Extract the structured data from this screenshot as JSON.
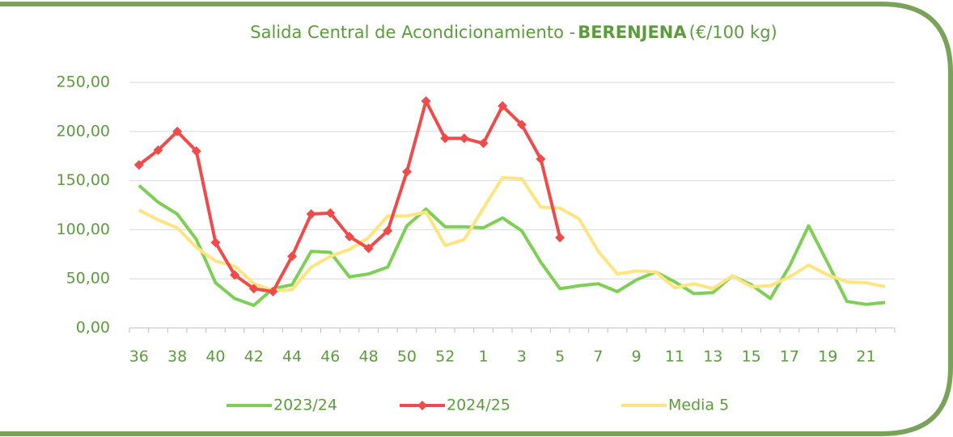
{
  "chart_data": {
    "type": "line",
    "title": [
      "Salida Central de Acondicionamiento -",
      "BERENJENA",
      "(€/100 kg)"
    ],
    "categories": [
      "36",
      null,
      "38",
      null,
      "40",
      null,
      "42",
      null,
      "44",
      null,
      "46",
      null,
      "48",
      null,
      "50",
      null,
      "52",
      null,
      "1",
      null,
      "3",
      null,
      "5",
      null,
      "7",
      null,
      "9",
      null,
      "11",
      null,
      "13",
      null,
      "15",
      null,
      "17",
      null,
      "19",
      null,
      "21",
      null
    ],
    "series": [
      {
        "name": "2023/24",
        "color": "#7dcf55",
        "values": [
          145,
          128,
          116,
          90,
          46,
          30,
          23,
          40,
          44,
          78,
          77,
          52,
          55,
          62,
          104,
          121,
          103,
          103,
          102,
          112,
          99,
          67,
          40,
          43,
          45,
          37,
          49,
          57,
          47,
          35,
          36,
          53,
          44,
          30,
          63,
          104,
          66,
          27,
          24,
          26
        ]
      },
      {
        "name": "2024/25",
        "color": "#f04b4b",
        "marker": "diamond",
        "values": [
          166,
          181,
          200,
          180,
          87,
          54,
          40,
          37,
          73,
          116,
          117,
          93,
          81,
          99,
          159,
          231,
          193,
          193,
          188,
          226,
          207,
          172,
          92,
          null,
          null,
          null,
          null,
          null,
          null,
          null,
          null,
          null,
          null,
          null,
          null,
          null,
          null,
          null,
          null,
          null
        ]
      },
      {
        "name": "Media 5",
        "color": "#ffe57f",
        "values": [
          120,
          110,
          102,
          82,
          68,
          63,
          45,
          38,
          39,
          62,
          73,
          80,
          92,
          114,
          114,
          118,
          84,
          90,
          122,
          153,
          152,
          123,
          122,
          111,
          78,
          55,
          58,
          57,
          41,
          45,
          40,
          53,
          42,
          43,
          52,
          64,
          54,
          47,
          46,
          42
        ]
      }
    ],
    "ylim": [
      0,
      250
    ],
    "yticks": [
      {
        "value": 0,
        "label": "0,00"
      },
      {
        "value": 50,
        "label": "50,00"
      },
      {
        "value": 100,
        "label": "100,00"
      },
      {
        "value": 150,
        "label": "150,00"
      },
      {
        "value": 200,
        "label": "200,00"
      },
      {
        "value": 250,
        "label": "250,00"
      }
    ],
    "grid": true,
    "legend": "bottom"
  }
}
